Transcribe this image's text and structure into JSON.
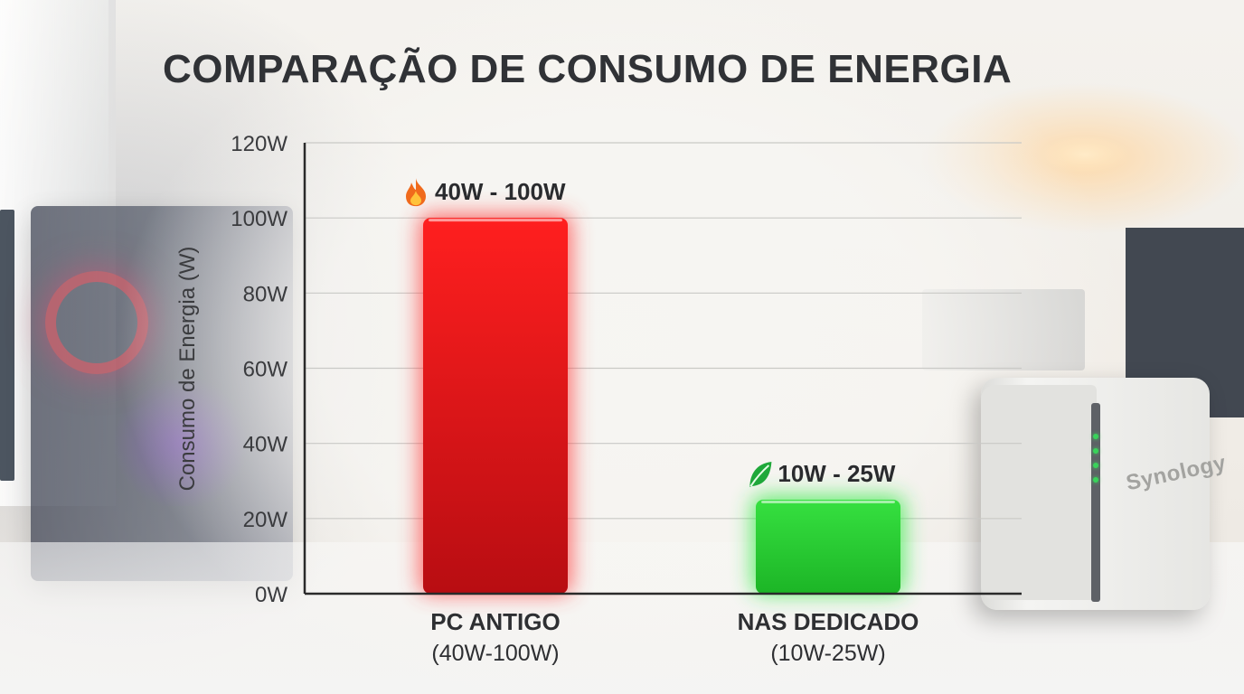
{
  "title": "COMPARAÇÃO DE CONSUMO DE ENERGIA",
  "background": {
    "nas_brand": "Synology"
  },
  "chart_data": {
    "type": "bar",
    "title": "COMPARAÇÃO DE CONSUMO DE ENERGIA",
    "ylabel": "Consumo de Energia (W)",
    "xlabel": "",
    "ylim": [
      0,
      120
    ],
    "yticks": [
      0,
      20,
      40,
      60,
      80,
      100,
      120
    ],
    "ytick_labels": [
      "0W",
      "20W",
      "40W",
      "60W",
      "80W",
      "100W",
      "120W"
    ],
    "grid": true,
    "categories": [
      "PC ANTIGO",
      "NAS DEDICADO"
    ],
    "category_sublabels": [
      "(40W-100W)",
      "(10W-25W)"
    ],
    "values": [
      100,
      25
    ],
    "ranges": [
      [
        40,
        100
      ],
      [
        10,
        25
      ]
    ],
    "data_labels": [
      "40W - 100W",
      "10W - 25W"
    ],
    "label_icons": [
      "fire-icon",
      "leaf-icon"
    ],
    "colors": [
      "#e8141a",
      "#22c92d"
    ],
    "glow_colors": [
      "#ff3b3b",
      "#2bea3c"
    ]
  }
}
